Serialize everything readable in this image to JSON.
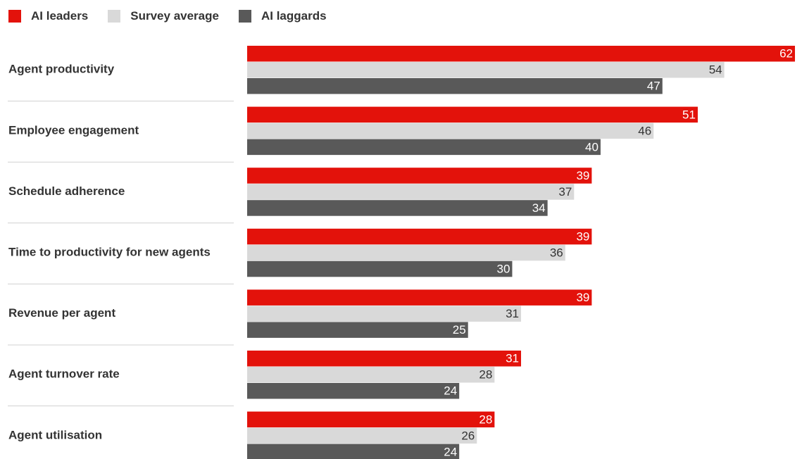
{
  "chart_data": {
    "type": "bar",
    "orientation": "horizontal",
    "categories": [
      "Agent productivity",
      "Employee engagement",
      "Schedule adherence",
      "Time to productivity for new agents",
      "Revenue per agent",
      "Agent turnover rate",
      "Agent utilisation"
    ],
    "series": [
      {
        "name": "AI leaders",
        "color": "#e3120b",
        "label_color": "#ffffff",
        "values": [
          62,
          51,
          39,
          39,
          39,
          31,
          28
        ]
      },
      {
        "name": "Survey average",
        "color": "#d9d9d9",
        "label_color": "#333333",
        "values": [
          54,
          46,
          37,
          36,
          31,
          28,
          26
        ]
      },
      {
        "name": "AI laggards",
        "color": "#595959",
        "label_color": "#ffffff",
        "values": [
          47,
          40,
          34,
          30,
          25,
          24,
          24
        ]
      }
    ],
    "xlim": [
      0,
      62
    ],
    "legend": "top-left",
    "grid": false,
    "title": "",
    "xlabel": "",
    "ylabel": ""
  }
}
